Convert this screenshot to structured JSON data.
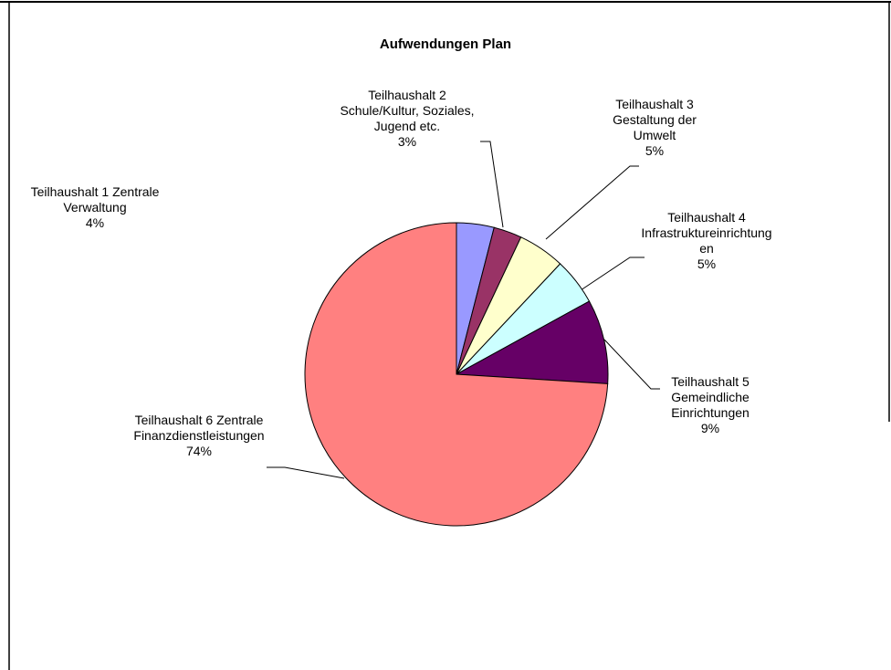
{
  "chart_data": {
    "type": "pie",
    "title": "Aufwendungen Plan",
    "categories": [
      "Teilhaushalt 1 Zentrale Verwaltung",
      "Teilhaushalt 2 Schule/Kultur, Soziales, Jugend etc.",
      "Teilhaushalt 3 Gestaltung der Umwelt",
      "Teilhaushalt 4 Infrastruktureinrichtungen",
      "Teilhaushalt 5 Gemeindliche Einrichtungen",
      "Teilhaushalt 6 Zentrale Finanzdienstleistungen"
    ],
    "values": [
      4,
      3,
      5,
      5,
      9,
      74
    ],
    "value_labels": [
      "4%",
      "3%",
      "5%",
      "5%",
      "9%",
      "74%"
    ],
    "colors": [
      "#9999ff",
      "#993366",
      "#ffffcc",
      "#ccffff",
      "#660066",
      "#ff8080"
    ]
  }
}
